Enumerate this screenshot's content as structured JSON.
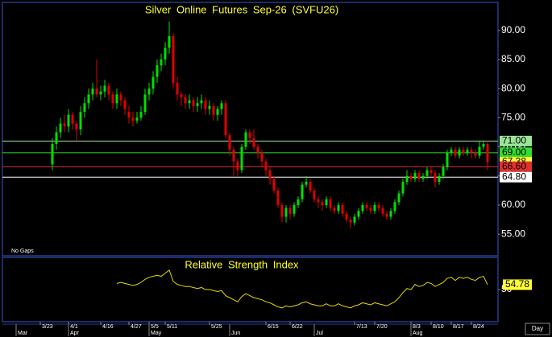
{
  "chart_data": {
    "type": "candlestick",
    "title": "Silver Online Futures Sep-26 (SVFU26)",
    "annotation": "No Gaps",
    "x_label": "Day",
    "up_color": "#00e000",
    "down_color": "#e00000",
    "ylim": [
      51.3,
      94.8
    ],
    "yticks": [
      {
        "value": 55,
        "label": "55.00"
      },
      {
        "value": 60,
        "label": "60.00"
      },
      {
        "value": 65,
        "label": "65.00"
      },
      {
        "value": 70,
        "label": "70.00"
      },
      {
        "value": 75,
        "label": "75.00"
      },
      {
        "value": 80,
        "label": "80.00"
      },
      {
        "value": 85,
        "label": "85.00"
      },
      {
        "value": 90,
        "label": "90.00"
      }
    ],
    "levels": [
      {
        "value": 71.0,
        "label": "71.00",
        "color": "#9be59b",
        "line": true
      },
      {
        "value": 69.0,
        "label": "69.00",
        "color": "#33dd33",
        "line": true
      },
      {
        "value": 67.38,
        "label": "67.38",
        "color": "#ffff33",
        "line": false
      },
      {
        "value": 66.6,
        "label": "66.60",
        "color": "#e03030",
        "line": true
      },
      {
        "value": 64.8,
        "label": "64.80",
        "color": "#ffffff",
        "line": true
      }
    ],
    "categories": [
      null,
      null,
      null,
      null,
      null,
      null,
      null,
      null,
      "3/23",
      null,
      null,
      null,
      null,
      null,
      null,
      "4/1",
      null,
      null,
      null,
      null,
      null,
      null,
      null,
      "4/16",
      null,
      null,
      null,
      null,
      null,
      null,
      "4/27",
      null,
      null,
      null,
      null,
      "5/5",
      null,
      null,
      null,
      "5/11",
      null,
      null,
      null,
      null,
      null,
      null,
      null,
      null,
      null,
      null,
      "5/25",
      null,
      null,
      null,
      null,
      null,
      null,
      null,
      null,
      null,
      null,
      null,
      null,
      null,
      "6/15",
      null,
      null,
      null,
      null,
      null,
      "6/22",
      null,
      null,
      null,
      null,
      null,
      null,
      null,
      null,
      null,
      null,
      null,
      null,
      null,
      null,
      null,
      "7/13",
      null,
      null,
      null,
      null,
      "7/20",
      null,
      null,
      null,
      null,
      null,
      null,
      null,
      null,
      "8/3",
      null,
      null,
      null,
      null,
      "8/10",
      null,
      null,
      null,
      null,
      "8/17",
      null,
      null,
      null,
      null,
      "8/24",
      null,
      null,
      null,
      null,
      null,
      null
    ],
    "months": [
      null,
      null,
      "Mar",
      null,
      null,
      null,
      null,
      null,
      null,
      null,
      null,
      null,
      null,
      null,
      null,
      "Apr",
      null,
      null,
      null,
      null,
      null,
      null,
      null,
      null,
      null,
      null,
      null,
      null,
      null,
      null,
      null,
      null,
      null,
      null,
      null,
      "May",
      null,
      null,
      null,
      null,
      null,
      null,
      null,
      null,
      null,
      null,
      null,
      null,
      null,
      null,
      null,
      null,
      null,
      null,
      null,
      "Jun",
      null,
      null,
      null,
      null,
      null,
      null,
      null,
      null,
      null,
      null,
      null,
      null,
      null,
      null,
      null,
      null,
      null,
      null,
      null,
      null,
      "Jul",
      null,
      null,
      null,
      null,
      null,
      null,
      null,
      null,
      null,
      null,
      null,
      null,
      null,
      null,
      null,
      null,
      null,
      null,
      null,
      null,
      null,
      null,
      null,
      "Aug",
      null,
      null,
      null,
      null,
      null,
      null,
      null,
      null,
      null,
      null,
      null,
      null,
      null,
      null,
      null,
      null,
      null,
      null,
      null,
      null,
      null
    ],
    "open": [
      null,
      null,
      null,
      null,
      null,
      null,
      null,
      null,
      null,
      null,
      null,
      67,
      70.5,
      72.5,
      74,
      73.5,
      75.5,
      74,
      73,
      76,
      77.5,
      79,
      80,
      79,
      79.5,
      80.5,
      79,
      77.5,
      79,
      78,
      76,
      75,
      74.5,
      75,
      76,
      79,
      80,
      82,
      84,
      85,
      87,
      89,
      81,
      79,
      78.5,
      77.5,
      78,
      77,
      77.5,
      78,
      76.5,
      77,
      75.5,
      76.5,
      77.5,
      72,
      69.5,
      67.5,
      66,
      70,
      72.5,
      71.5,
      70,
      69,
      67.5,
      66,
      64.5,
      62.5,
      60,
      58,
      59.5,
      58.5,
      60,
      61,
      63.5,
      64,
      62.5,
      61,
      60.5,
      60,
      61,
      59.5,
      59,
      60,
      58.5,
      57.5,
      57,
      58,
      59,
      60,
      59.5,
      59,
      60,
      59.5,
      58.5,
      58,
      59,
      60.5,
      62,
      64,
      65,
      64.5,
      65.5,
      64.5,
      65,
      66,
      65.5,
      64,
      65,
      66.5,
      69,
      69.5,
      68.5,
      69.5,
      69,
      69.5,
      69,
      68.5,
      70,
      70.5,
      null,
      null
    ],
    "high": [
      null,
      null,
      null,
      null,
      null,
      null,
      null,
      null,
      null,
      null,
      null,
      71.5,
      73.5,
      75,
      75.5,
      76.5,
      76,
      74.5,
      77,
      78.5,
      80,
      81,
      85,
      80.5,
      81.5,
      81,
      79.5,
      80,
      79.5,
      78.5,
      77,
      76,
      76,
      77,
      80,
      81,
      83,
      85,
      86,
      88,
      91.5,
      89.5,
      82,
      79.5,
      79,
      79,
      78.5,
      78.5,
      79,
      78.5,
      78,
      77.5,
      77,
      78,
      78,
      72.5,
      70,
      68,
      70.5,
      73,
      73,
      73,
      70.5,
      69.5,
      68,
      66.5,
      65,
      63,
      60.5,
      60,
      60,
      60.5,
      61.5,
      64,
      65,
      64.5,
      63,
      61.5,
      61,
      61.5,
      61.5,
      60,
      60.5,
      60.5,
      59,
      58,
      58.5,
      59.5,
      60.5,
      60.5,
      60,
      60.5,
      60.5,
      60,
      59,
      59.5,
      61,
      62.5,
      64.5,
      66,
      65.5,
      66,
      66,
      65.5,
      66.5,
      66.5,
      66,
      65.5,
      67,
      69.5,
      70,
      70,
      70,
      70,
      70,
      70,
      69.5,
      71,
      71,
      71,
      null,
      null
    ],
    "low": [
      null,
      null,
      null,
      null,
      null,
      null,
      null,
      null,
      null,
      null,
      null,
      66,
      69.5,
      71.5,
      72.5,
      72.5,
      73,
      71,
      72,
      75,
      76.5,
      78,
      78.5,
      78,
      78.5,
      78,
      76.5,
      76.5,
      77,
      75.5,
      74,
      73.5,
      74,
      74.5,
      75.5,
      78,
      79,
      81,
      83,
      84,
      86,
      80,
      78,
      77,
      76.5,
      76.5,
      76,
      76,
      76.5,
      75.5,
      75.5,
      74.5,
      74.5,
      75.5,
      71.5,
      68.5,
      65,
      65,
      65.5,
      69.5,
      70.5,
      69.5,
      68,
      66.5,
      65,
      63.5,
      62,
      59.5,
      57,
      57,
      57.5,
      58,
      59.5,
      60.5,
      63,
      62,
      60.5,
      59.5,
      59,
      59.5,
      59,
      58.5,
      58.5,
      58,
      57,
      56,
      56.5,
      57.5,
      58.5,
      59,
      58.5,
      58.5,
      59,
      58,
      57.5,
      57.5,
      58.5,
      60,
      61.5,
      63.5,
      64,
      64,
      64,
      64,
      64.5,
      65,
      63,
      63.5,
      64.5,
      66,
      68.5,
      68,
      68,
      68.5,
      68.5,
      68,
      68,
      68,
      69.5,
      66,
      null,
      null
    ],
    "close": [
      null,
      null,
      null,
      null,
      null,
      null,
      null,
      null,
      null,
      null,
      null,
      70.5,
      72.5,
      74,
      73.5,
      75.5,
      74,
      73,
      76,
      77.5,
      79,
      80,
      79,
      79.5,
      80.5,
      79,
      77.5,
      79,
      78,
      76.5,
      75,
      74.5,
      75,
      76,
      79,
      80,
      82,
      84,
      85,
      87,
      89,
      81,
      79,
      78.5,
      77.5,
      78,
      77,
      77.5,
      78,
      76.5,
      77,
      75.5,
      76.5,
      77.5,
      72,
      69.5,
      67.5,
      66,
      70,
      72.5,
      71.5,
      70,
      69,
      67.5,
      66,
      64.5,
      62.5,
      60,
      58,
      59.5,
      58.5,
      60,
      61,
      63.5,
      64,
      62.5,
      61,
      60.5,
      60,
      61,
      59.5,
      59,
      60,
      58.5,
      57.5,
      57,
      58,
      59,
      60,
      59.5,
      59,
      60,
      59.5,
      58.5,
      58,
      59,
      60.5,
      62,
      64,
      65,
      64.5,
      65.5,
      64.5,
      65,
      66,
      65.5,
      64,
      65,
      66.5,
      69,
      69.5,
      68.5,
      69.5,
      69,
      69.5,
      69,
      68.5,
      70,
      70.5,
      67.38,
      null,
      null
    ],
    "rsi": {
      "title": "Relative Strength Index",
      "color": "#e6d800",
      "ylim": [
        20,
        80
      ],
      "yticks": [
        50
      ],
      "last_label": {
        "value": 54.78,
        "label": "54.78",
        "color": "#ffff33"
      },
      "values": [
        null,
        null,
        null,
        null,
        null,
        null,
        null,
        null,
        null,
        null,
        null,
        null,
        null,
        null,
        null,
        null,
        null,
        null,
        null,
        null,
        null,
        null,
        null,
        null,
        null,
        null,
        null,
        56,
        57,
        56,
        55,
        54,
        55,
        57,
        60,
        62,
        63,
        64,
        63,
        66,
        69,
        58,
        55,
        54,
        53,
        53,
        52,
        51,
        52,
        50,
        50,
        49,
        48,
        49,
        44,
        42,
        40,
        38,
        43,
        46,
        44,
        42,
        41,
        40,
        38,
        37,
        35,
        33,
        32,
        34,
        33,
        34,
        35,
        37,
        38,
        36,
        35,
        34,
        34,
        36,
        34,
        34,
        36,
        34,
        33,
        32,
        34,
        35,
        37,
        36,
        35,
        37,
        36,
        35,
        34,
        36,
        38,
        42,
        47,
        51,
        50,
        55,
        53,
        54,
        57,
        56,
        53,
        55,
        57,
        61,
        62,
        59,
        62,
        61,
        62,
        60,
        59,
        62,
        63,
        54.78,
        null,
        null
      ]
    }
  }
}
